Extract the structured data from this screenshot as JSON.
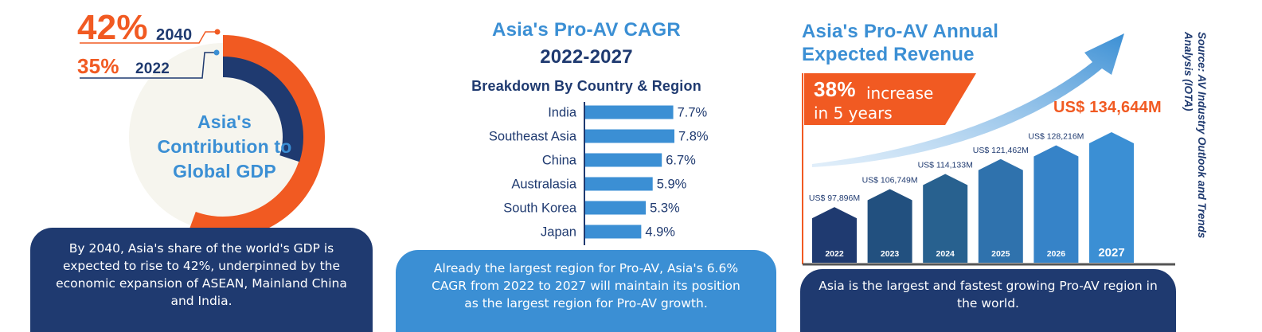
{
  "panel1": {
    "pct_2040": "42%",
    "year_2040": "2040",
    "pct_2022": "35%",
    "year_2022": "2022",
    "title_lines": [
      "Asia's",
      "Contribution to",
      "Global GDP"
    ],
    "caption": "By 2040, Asia's share of the world's GDP is expected to rise to 42%, underpinned by the economic expansion of ASEAN, Mainland China and India.",
    "colors": {
      "outer_ring": "#f15a22",
      "inner_ring": "#1f3a70"
    }
  },
  "panel2": {
    "title": "Asia's Pro-AV CAGR",
    "period": "2022-2027",
    "subtitle": "Breakdown By Country & Region",
    "caption": "Already the largest region for Pro-AV, Asia's 6.6% CAGR from 2022 to 2027 will maintain its position as the largest region for Pro-AV growth."
  },
  "panel3": {
    "title_line1": "Asia's Pro-AV Annual",
    "title_line2": "Expected Revenue",
    "increase_pct": "38%",
    "increase_text1": "increase",
    "increase_text2": "in 5 years",
    "highlight_label": "US$ 134,644M",
    "caption": "Asia is the largest and fastest growing Pro-AV region in the world.",
    "source": "Source: AV Industry Outlook and Trends Analysis (IOTA)"
  },
  "chart_data": [
    {
      "type": "bar",
      "orientation": "horizontal",
      "categories": [
        "India",
        "Southeast Asia",
        "China",
        "Australasia",
        "South Korea",
        "Japan"
      ],
      "values": [
        7.7,
        7.8,
        6.7,
        5.9,
        5.3,
        4.9
      ],
      "value_labels": [
        "7.7%",
        "7.8%",
        "6.7%",
        "5.9%",
        "5.3%",
        "4.9%"
      ],
      "color": "#3b8fd4"
    },
    {
      "type": "bar",
      "categories": [
        "2022",
        "2023",
        "2024",
        "2025",
        "2026",
        "2027"
      ],
      "values": [
        97896,
        106749,
        114133,
        121462,
        128216,
        134644
      ],
      "value_labels": [
        "US$ 97,896M",
        "US$ 106,749M",
        "US$ 114,133M",
        "US$ 121,462M",
        "US$ 128,216M",
        ""
      ],
      "colors": [
        "#1f3a70",
        "#22507f",
        "#28618f",
        "#2f72ad",
        "#3683c8",
        "#3b8fd4"
      ]
    }
  ]
}
